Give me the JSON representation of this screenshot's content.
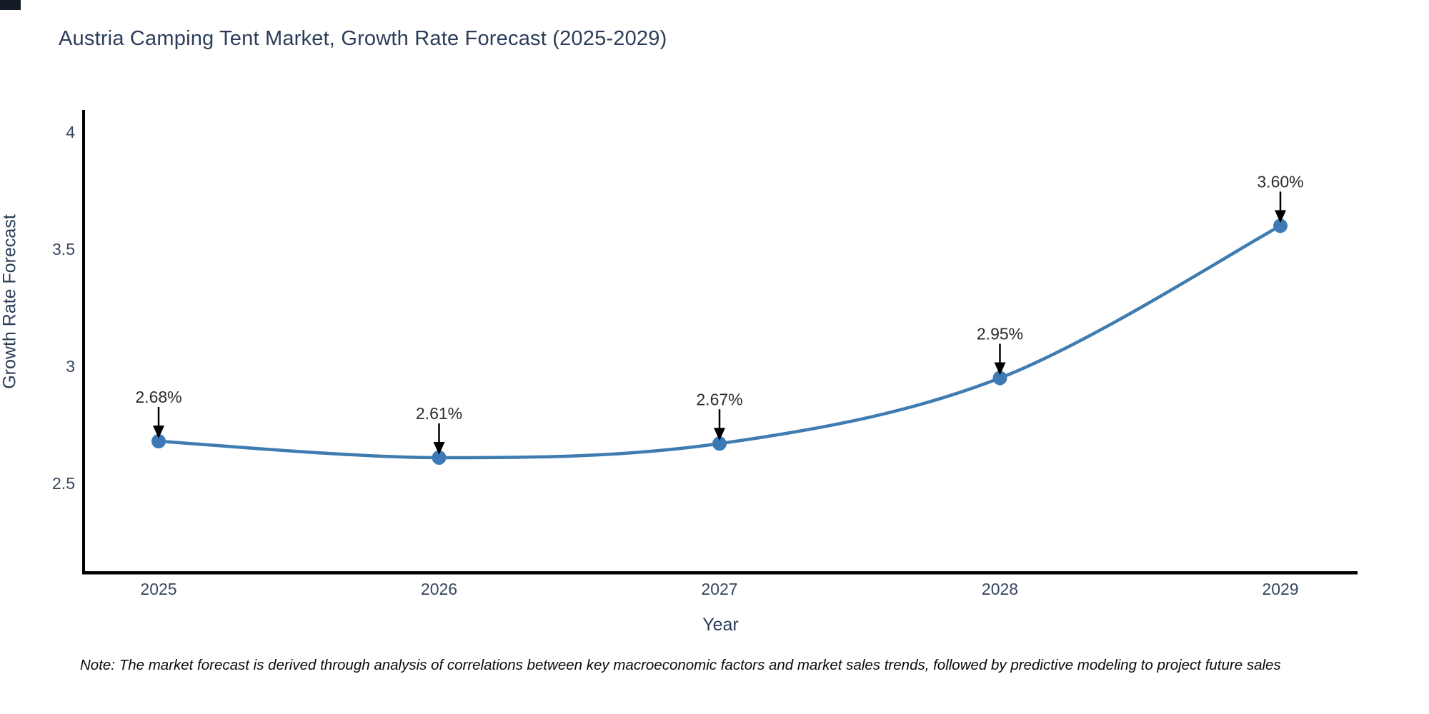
{
  "title": "Austria Camping Tent Market, Growth Rate Forecast (2025-2029)",
  "note": "Note: The market forecast is derived through analysis of correlations between key macroeconomic factors and market sales trends, followed by predictive modeling to project future sales",
  "chart_data": {
    "type": "line",
    "title": "Austria Camping Tent Market, Growth Rate Forecast (2025-2029)",
    "x": [
      2025,
      2026,
      2027,
      2028,
      2029
    ],
    "xtick_labels": [
      "2025",
      "2026",
      "2027",
      "2028",
      "2029"
    ],
    "series": [
      {
        "name": "Growth Rate Forecast",
        "values": [
          2.68,
          2.61,
          2.67,
          2.95,
          3.6
        ]
      }
    ],
    "point_labels": [
      "2.68%",
      "2.61%",
      "2.67%",
      "2.95%",
      "3.60%"
    ],
    "xlabel": "Year",
    "ylabel": "Growth Rate Forecast",
    "yticks": [
      2.5,
      3,
      3.5,
      4
    ],
    "ytick_labels": [
      "2.5",
      "3",
      "3.5",
      "4"
    ],
    "ylim": [
      2.125,
      4.095
    ],
    "grid": false,
    "legend": "none",
    "curve": "smooth",
    "annotations_have_arrows": true,
    "colors": {
      "line": "#3e7cb1",
      "marker": "#3d7ab5",
      "axis_spine": "#000000",
      "tick_text": "#36465f",
      "annotation_text": "#2b2b2b",
      "annotation_arrow": "#000000",
      "title_text": "#2b3d59",
      "background": "#ffffff"
    }
  }
}
